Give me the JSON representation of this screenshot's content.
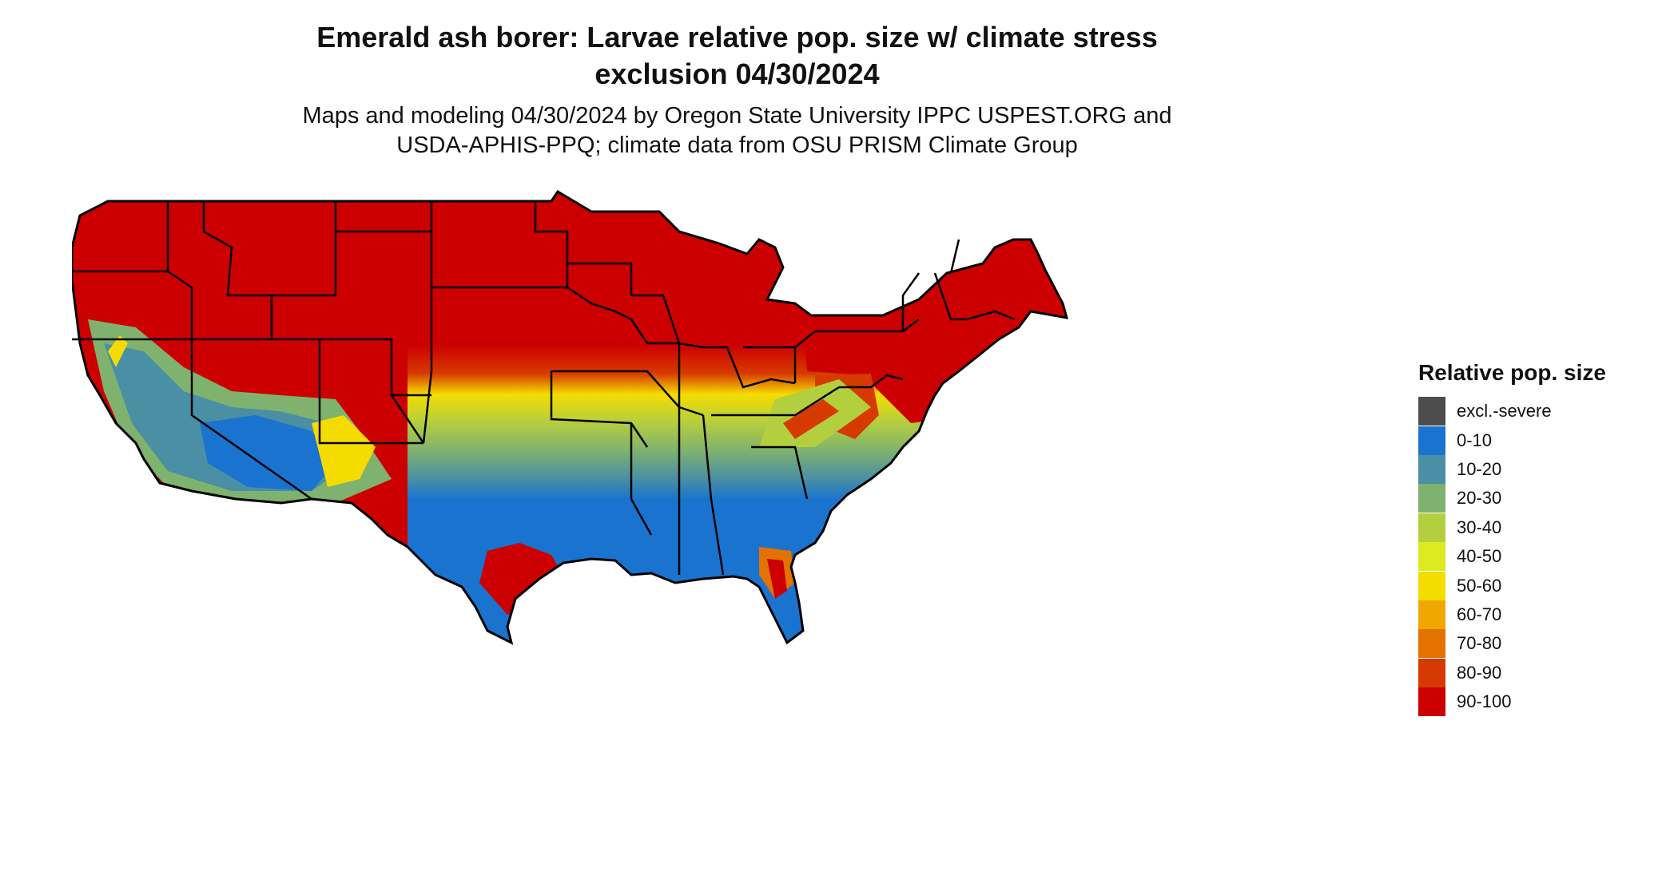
{
  "title_line1": "Emerald ash borer: Larvae relative pop. size w/ climate stress",
  "title_line2": "exclusion 04/30/2024",
  "subtitle_line1": "Maps and modeling 04/30/2024 by Oregon State University IPPC USPEST.ORG and",
  "subtitle_line2": "USDA-APHIS-PPQ; climate data from OSU PRISM Climate Group",
  "legend": {
    "title": "Relative pop. size",
    "items": [
      {
        "label": "excl.-severe",
        "color": "#4d4d4d"
      },
      {
        "label": "0-10",
        "color": "#1a73cf"
      },
      {
        "label": "10-20",
        "color": "#4a8fa3"
      },
      {
        "label": "20-30",
        "color": "#7fb26e"
      },
      {
        "label": "30-40",
        "color": "#b4cf3e"
      },
      {
        "label": "40-50",
        "color": "#dcea1f"
      },
      {
        "label": "50-60",
        "color": "#f5dc00"
      },
      {
        "label": "60-70",
        "color": "#f0a800"
      },
      {
        "label": "70-80",
        "color": "#e37200"
      },
      {
        "label": "80-90",
        "color": "#d63a00"
      },
      {
        "label": "90-100",
        "color": "#cc0000"
      }
    ]
  }
}
